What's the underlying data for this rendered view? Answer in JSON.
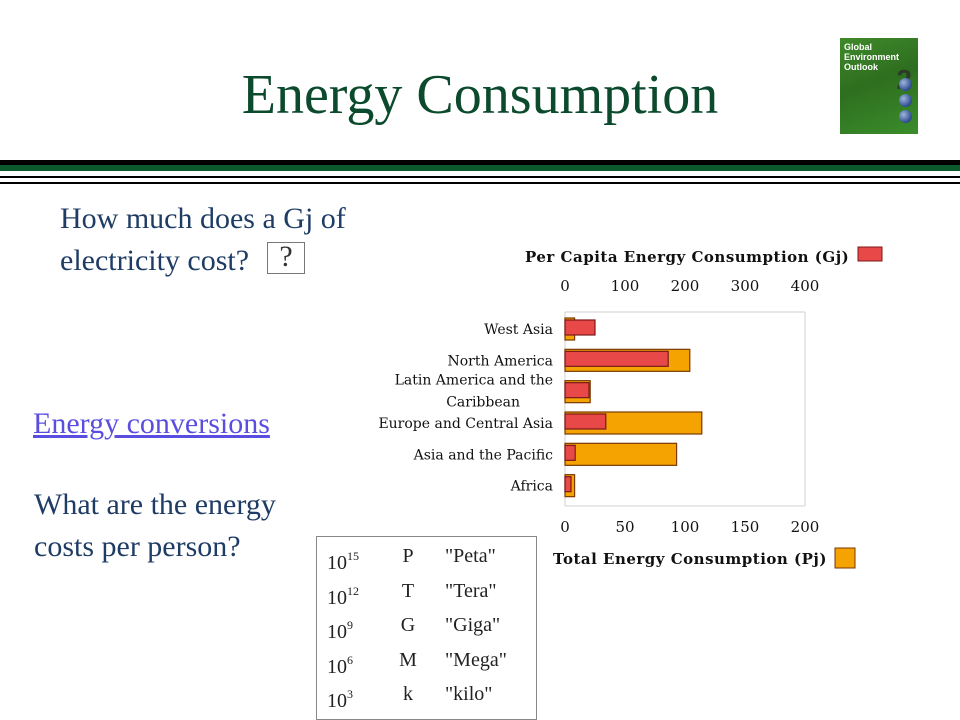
{
  "header": {
    "title": "Energy Consumption",
    "logo_text": [
      "Global",
      "Environment",
      "Outlook"
    ],
    "logo_number": "2"
  },
  "left": {
    "question1": "How much does a Gj of electricity cost?",
    "hint_symbol": "?",
    "link": "Energy conversions",
    "question2": "What are the energy costs per person?"
  },
  "prefix_table": [
    {
      "base": "10",
      "exp": "15",
      "symbol": "P",
      "name": "\"Peta\""
    },
    {
      "base": "10",
      "exp": "12",
      "symbol": "T",
      "name": "\"Tera\""
    },
    {
      "base": "10",
      "exp": "9",
      "symbol": "G",
      "name": "\"Giga\""
    },
    {
      "base": "10",
      "exp": "6",
      "symbol": "M",
      "name": "\"Mega\""
    },
    {
      "base": "10",
      "exp": "3",
      "symbol": "k",
      "name": "\"kilo\""
    }
  ],
  "chart_data": {
    "type": "bar",
    "orientation": "horizontal",
    "categories": [
      "West Asia",
      "North America",
      "Latin America and the Caribbean",
      "Europe and Central Asia",
      "Asia and the Pacific",
      "Africa"
    ],
    "series": [
      {
        "name": "Per Capita Energy Consumption (Gj)",
        "color": "#e84848",
        "axis": "top",
        "values": [
          50,
          172,
          40,
          68,
          17,
          10
        ]
      },
      {
        "name": "Total Energy Consumption (Pj)",
        "color": "#f4a300",
        "axis": "bottom",
        "values": [
          8,
          104,
          21,
          114,
          93,
          8
        ]
      }
    ],
    "top_axis": {
      "range": [
        0,
        400
      ],
      "ticks": [
        "0",
        "100",
        "200",
        "300",
        "400"
      ]
    },
    "bottom_axis": {
      "range": [
        0,
        200
      ],
      "ticks": [
        "0",
        "50",
        "100",
        "150",
        "200"
      ]
    },
    "legend_placement": "top-right and bottom-right",
    "grid": false
  }
}
